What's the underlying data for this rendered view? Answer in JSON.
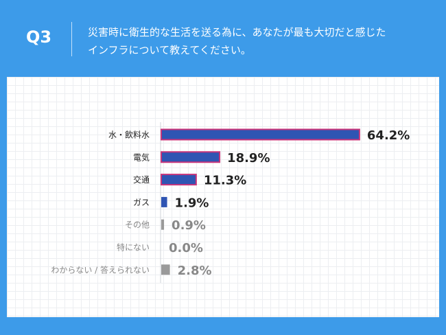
{
  "header": {
    "label": "Q3",
    "question": [
      "災害時に衛生的な生活を送る為に、あなたが最も大切だと感じた",
      "インフラについて教えてください。"
    ]
  },
  "chart_data": {
    "type": "hbar",
    "categories": [
      "水・飲料水",
      "電気",
      "交通",
      "ガス",
      "その他",
      "特にない",
      "わからない / 答えられない"
    ],
    "values": [
      64.2,
      18.9,
      11.3,
      1.9,
      0.9,
      0.0,
      2.8
    ],
    "value_labels": [
      "64.2%",
      "18.9%",
      "11.3%",
      "1.9%",
      "0.9%",
      "0.0%",
      "2.8%"
    ],
    "colors": [
      "#2f55b3",
      "#2f55b3",
      "#2f55b3",
      "#2f55b3",
      "#9a9a9a",
      "#9a9a9a",
      "#9a9a9a"
    ],
    "edge_colors": [
      "#c8347a",
      "#c8347a",
      "#c8347a",
      null,
      null,
      null,
      null
    ],
    "label_colors": [
      "#222222",
      "#222222",
      "#222222",
      "#222222",
      "#888888",
      "#888888",
      "#888888"
    ]
  }
}
